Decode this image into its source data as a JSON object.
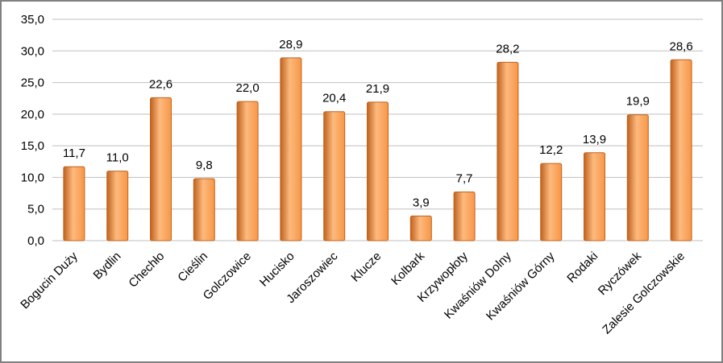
{
  "chart_data": {
    "type": "bar",
    "categories": [
      "Bogucin Duży",
      "Bydlin",
      "Chechło",
      "Cieślin",
      "Golczowice",
      "Hucisko",
      "Jaroszowiec",
      "Klucze",
      "Kolbark",
      "Krzywopłoty",
      "Kwaśniów Dolny",
      "Kwaśniów Górny",
      "Rodaki",
      "Ryczówek",
      "Zalesie Golczowskie"
    ],
    "values": [
      11.7,
      11.0,
      22.6,
      9.8,
      22.0,
      28.9,
      20.4,
      21.9,
      3.9,
      7.7,
      28.2,
      12.2,
      13.9,
      19.9,
      28.6
    ],
    "value_labels": [
      "11,7",
      "11,0",
      "22,6",
      "9,8",
      "22,0",
      "28,9",
      "20,4",
      "21,9",
      "3,9",
      "7,7",
      "28,2",
      "12,2",
      "13,9",
      "19,9",
      "28,6"
    ],
    "yticks": [
      0,
      5,
      10,
      15,
      20,
      25,
      30,
      35
    ],
    "ytick_labels": [
      "0,0",
      "5,0",
      "10,0",
      "15,0",
      "20,0",
      "25,0",
      "30,0",
      "35,0"
    ],
    "ylim": [
      0,
      35
    ],
    "grid": true,
    "legend": "none",
    "title": "",
    "xlabel": "",
    "ylabel": "",
    "colors": {
      "bar": "#F79646",
      "bar_light": "#FDBA7E",
      "bar_edge": "#C0621E",
      "grid": "#BFBFBF"
    }
  }
}
